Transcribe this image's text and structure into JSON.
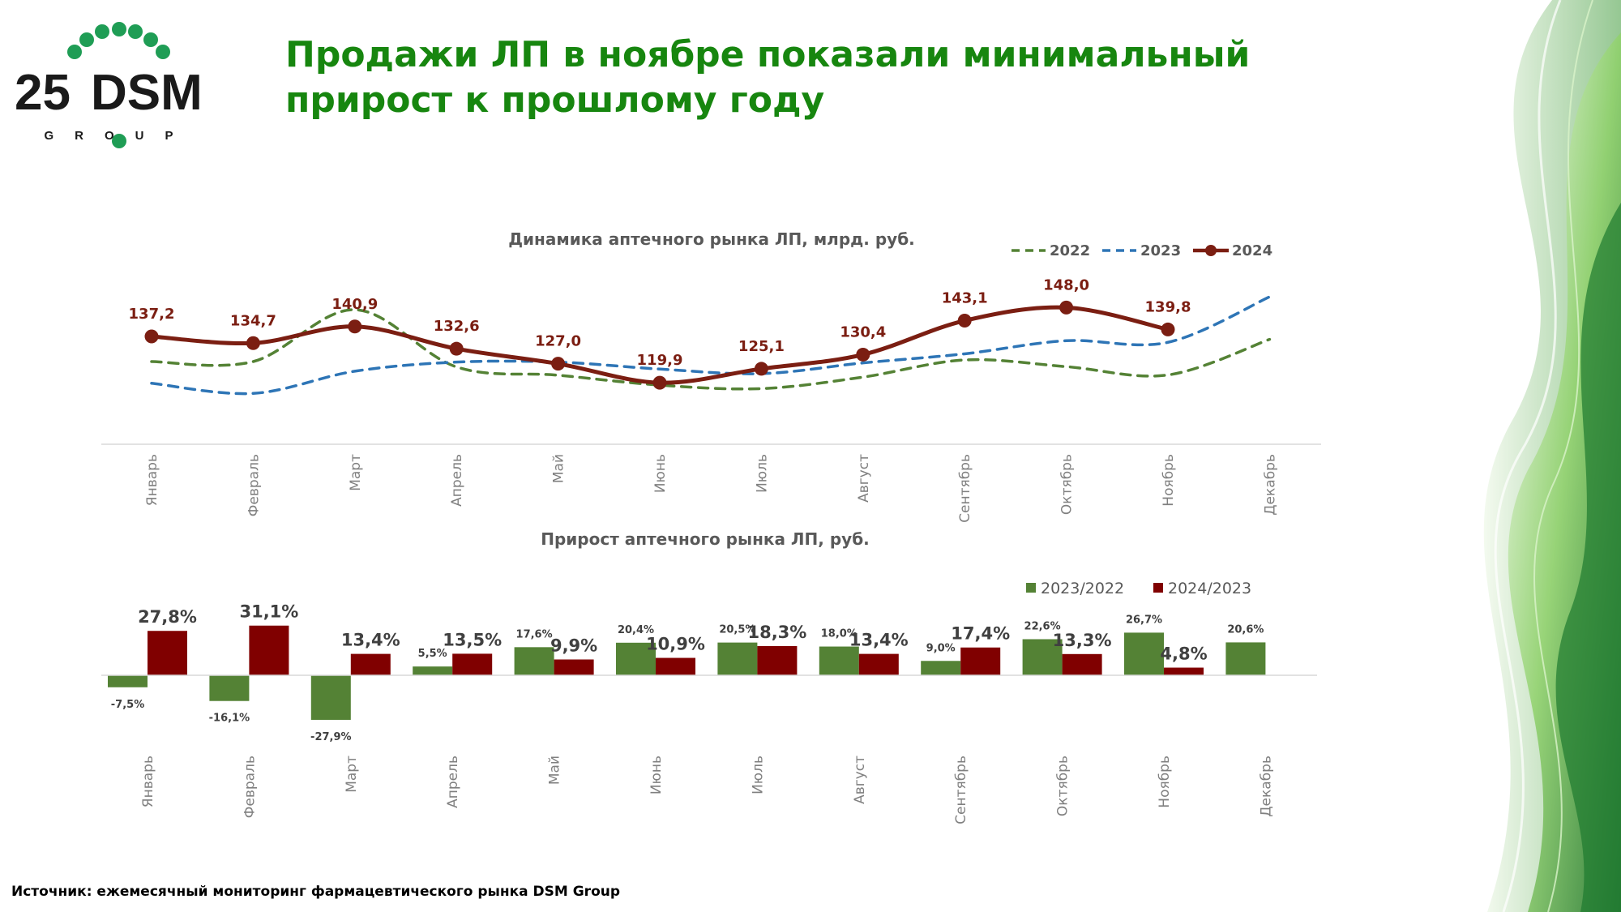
{
  "logo": {
    "number": "25",
    "brand": "DSM",
    "sub": "GROUP"
  },
  "slide": {
    "title": "Продажи ЛП в ноябре показали минимальный прирост к прошлому году",
    "source": "Источник: ежемесячный мониторинг фармацевтического рынка DSM Group"
  },
  "colors": {
    "title": "#17860f",
    "s2022": "#548235",
    "s2023": "#2e75b6",
    "s2024": "#7b1e12",
    "bar2023": "#548235",
    "bar2024": "#800000"
  },
  "chart_data": [
    {
      "type": "line",
      "title": "Динамика аптечного рынка ЛП, млрд. руб.",
      "categories": [
        "Январь",
        "Февраль",
        "Март",
        "Апрель",
        "Май",
        "Июнь",
        "Июль",
        "Август",
        "Сентябрь",
        "Октябрь",
        "Ноябрь",
        "Декабрь"
      ],
      "legend_position": "top-right",
      "series": [
        {
          "name": "2022",
          "style": "dashed",
          "values": [
            127.8,
            127.8,
            147.2,
            125.8,
            122.7,
            119.0,
            117.7,
            122.0,
            128.4,
            125.9,
            122.8,
            136.1
          ]
        },
        {
          "name": "2023",
          "style": "dashed",
          "values": [
            119.7,
            115.9,
            124.2,
            127.6,
            127.6,
            125.0,
            123.3,
            127.3,
            130.7,
            135.6,
            135.0,
            152.0
          ]
        },
        {
          "name": "2024",
          "style": "solid-markers",
          "values": [
            137.2,
            134.7,
            140.9,
            132.6,
            127.0,
            119.9,
            125.1,
            130.4,
            143.1,
            148.0,
            139.8,
            null
          ],
          "labels": [
            "137,2",
            "134,7",
            "140,9",
            "132,6",
            "127,0",
            "119,9",
            "125,1",
            "130,4",
            "143,1",
            "148,0",
            "139,8",
            ""
          ]
        }
      ]
    },
    {
      "type": "bar",
      "title": "Прирост аптечного рынка ЛП, руб.",
      "categories": [
        "Январь",
        "Февраль",
        "Март",
        "Апрель",
        "Май",
        "Июнь",
        "Июль",
        "Август",
        "Сентябрь",
        "Октябрь",
        "Ноябрь",
        "Декабрь"
      ],
      "legend_position": "top-right",
      "series": [
        {
          "name": "2023/2022",
          "values": [
            -7.5,
            -16.1,
            -27.9,
            5.5,
            17.6,
            20.4,
            20.5,
            18.0,
            9.0,
            22.6,
            26.7,
            20.6
          ],
          "labels": [
            "-7,5%",
            "-16,1%",
            "-27,9%",
            "5,5%",
            "17,6%",
            "20,4%",
            "20,5%",
            "18,0%",
            "9,0%",
            "22,6%",
            "26,7%",
            "20,6%"
          ]
        },
        {
          "name": "2024/2023",
          "values": [
            27.8,
            31.1,
            13.4,
            13.5,
            9.9,
            10.9,
            18.3,
            13.4,
            17.4,
            13.3,
            4.8,
            null
          ],
          "labels": [
            "27,8%",
            "31,1%",
            "13,4%",
            "13,5%",
            "9,9%",
            "10,9%",
            "18,3%",
            "13,4%",
            "17,4%",
            "13,3%",
            "4,8%",
            ""
          ]
        }
      ]
    }
  ]
}
